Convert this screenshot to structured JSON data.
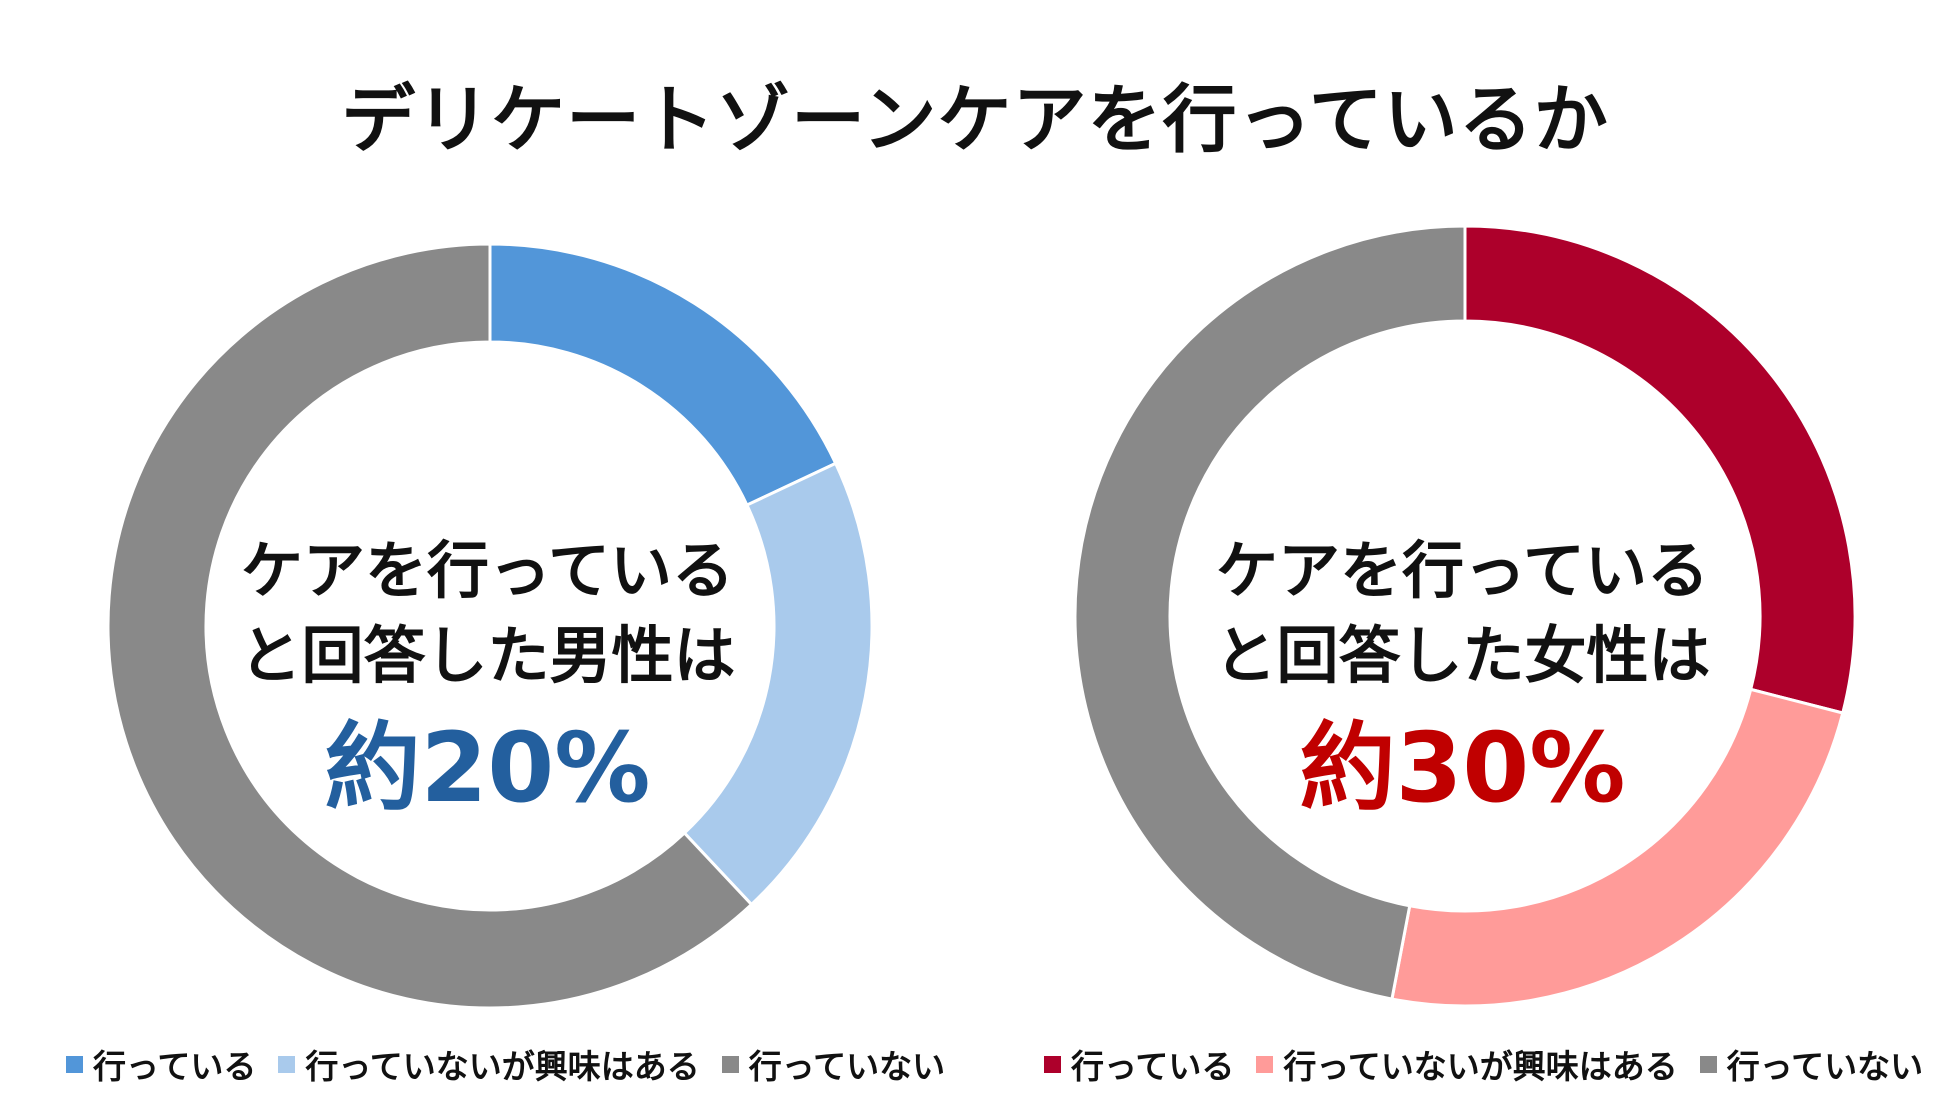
{
  "title": "デリケートゾーンケアを行っているか",
  "colors": {
    "male_doing": "#5296d9",
    "male_interested": "#a9caec",
    "female_doing": "#ad002b",
    "female_interested": "#ff9b99",
    "not_doing": "#898989",
    "male_accent": "#235f9e",
    "female_accent": "#c00000"
  },
  "center_left": {
    "line1": "ケアを行っている",
    "line2": "と回答した男性は",
    "line3": "約20%"
  },
  "center_right": {
    "line1": "ケアを行っている",
    "line2": "と回答した女性は",
    "line3": "約30%"
  },
  "chart_data": [
    {
      "type": "pie",
      "subtype": "donut",
      "categories": [
        "行っている",
        "行っていないが興味はある",
        "行っていない"
      ],
      "values": [
        18,
        20,
        62
      ],
      "colors": [
        "#5296d9",
        "#a9caec",
        "#898989"
      ],
      "legend": "bottom"
    },
    {
      "type": "pie",
      "subtype": "donut",
      "categories": [
        "行っている",
        "行っていないが興味はある",
        "行っていない"
      ],
      "values": [
        29,
        24,
        47
      ],
      "colors": [
        "#ad002b",
        "#ff9b99",
        "#898989"
      ],
      "legend": "bottom"
    }
  ]
}
